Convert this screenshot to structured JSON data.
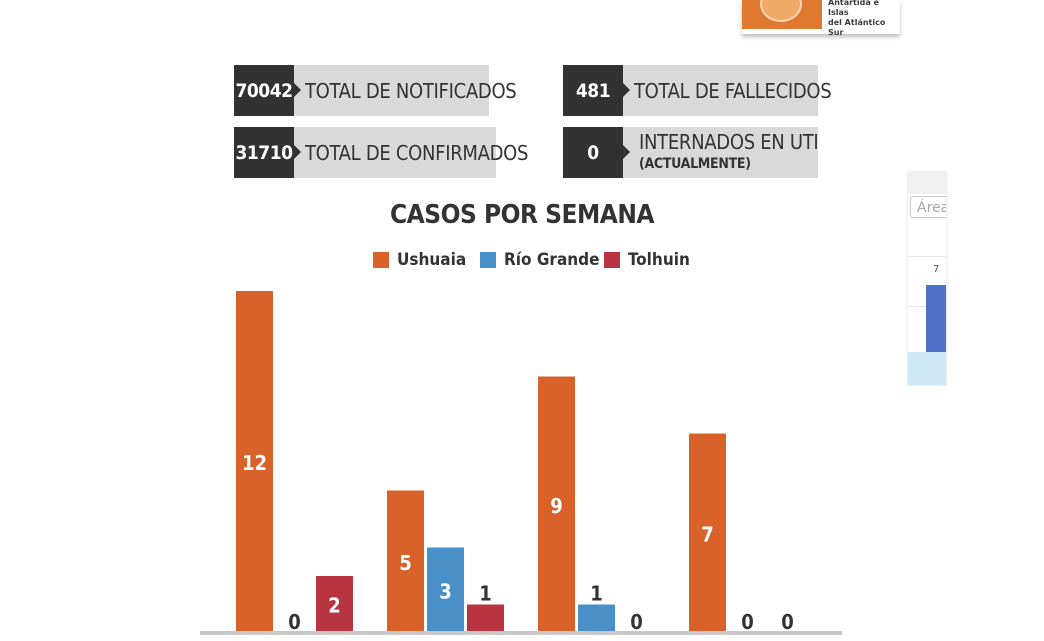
{
  "logo": {
    "text_line1": "Antártida e Islas",
    "text_line2": "del Atlántico Sur"
  },
  "stats": {
    "notificados": {
      "value": "70042",
      "label": "TOTAL DE NOTIFICADOS"
    },
    "fallecidos": {
      "value": "481",
      "label": "TOTAL DE FALLECIDOS"
    },
    "confirmados": {
      "value": "31710",
      "label": "TOTAL DE CONFIRMADOS"
    },
    "uti": {
      "value": "0",
      "label": "INTERNADOS EN UTI",
      "sublabel": "(ACTUALMENTE)"
    }
  },
  "side_panel": {
    "field_text": "Área",
    "value": "7"
  },
  "colors": {
    "ushuaia": "#d9622b",
    "rio_grande": "#4a90c8",
    "tolhuin": "#b83440",
    "dark_box": "#323232",
    "light_box": "#d9d9d9"
  },
  "chart_data": {
    "type": "bar",
    "title": "CASOS POR SEMANA",
    "categories": [
      "",
      "",
      "",
      ""
    ],
    "series": [
      {
        "name": "Ushuaia",
        "color": "#d9622b",
        "values": [
          12,
          5,
          9,
          7
        ]
      },
      {
        "name": "Río Grande",
        "color": "#4a90c8",
        "values": [
          0,
          3,
          1,
          0
        ]
      },
      {
        "name": "Tolhuin",
        "color": "#b83440",
        "values": [
          2,
          1,
          0,
          0
        ]
      }
    ],
    "xlabel": "",
    "ylabel": "",
    "ylim": [
      0,
      12
    ],
    "grid": false,
    "legend_position": "top"
  }
}
